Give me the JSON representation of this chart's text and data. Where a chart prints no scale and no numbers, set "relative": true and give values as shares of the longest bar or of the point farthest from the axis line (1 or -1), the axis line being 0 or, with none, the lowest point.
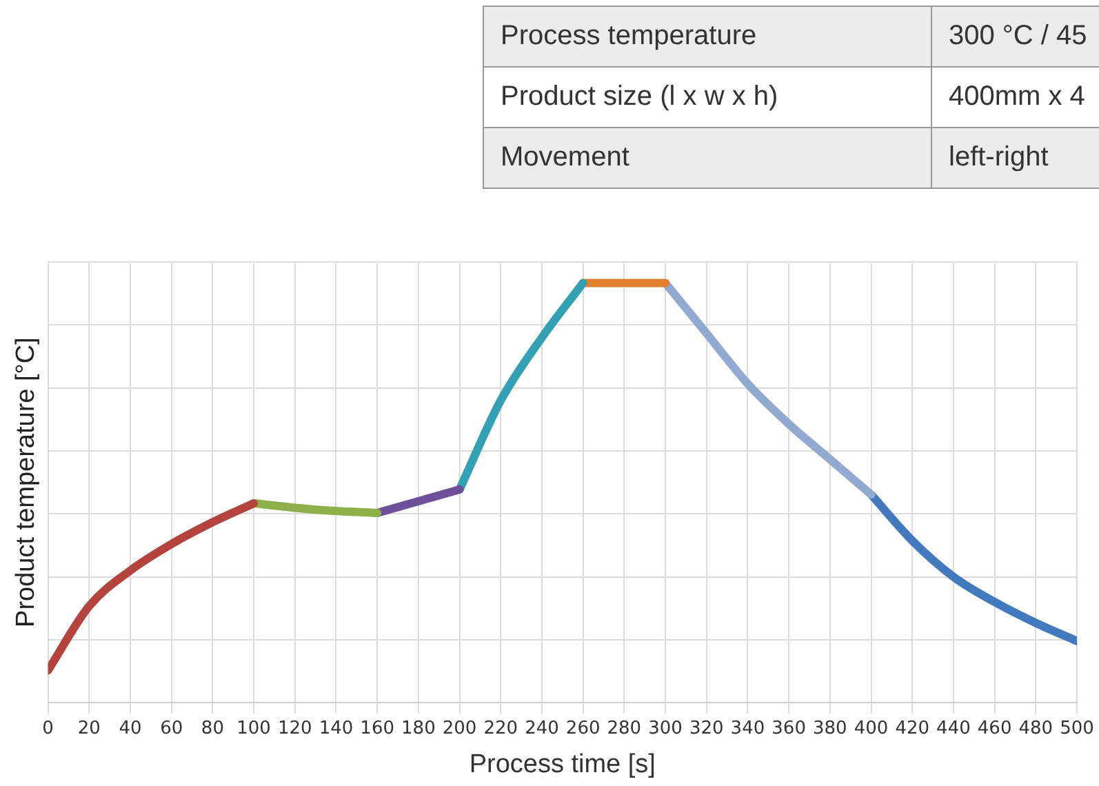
{
  "chart_data": {
    "type": "line",
    "xlabel": "Process time [s]",
    "ylabel": "Product temperature [°C]",
    "relative": true,
    "xlim": [
      0,
      500
    ],
    "xticks": [
      0,
      20,
      40,
      60,
      80,
      100,
      120,
      140,
      160,
      180,
      200,
      220,
      240,
      260,
      280,
      300,
      320,
      340,
      360,
      380,
      400,
      420,
      440,
      460,
      480,
      500
    ],
    "grid": true,
    "legend": false,
    "marker": "none",
    "line_style": "solid",
    "annotations": [
      "Process temperature",
      "300 °C / 45",
      "Product size (l x w x h)",
      "400mm x 4",
      "Movement",
      "left-right"
    ],
    "series": [
      {
        "color": "#b5433d",
        "x": [
          0,
          20,
          40,
          60,
          80,
          100
        ],
        "values": [
          0.077,
          0.23,
          0.315,
          0.378,
          0.43,
          0.475
        ]
      },
      {
        "color": "#8db04a",
        "x": [
          100,
          130,
          160
        ],
        "values": [
          0.475,
          0.46,
          0.452
        ]
      },
      {
        "color": "#6e4f9a",
        "x": [
          160,
          200
        ],
        "values": [
          0.452,
          0.508
        ]
      },
      {
        "color": "#34a0b4",
        "x": [
          200,
          220,
          240,
          260
        ],
        "values": [
          0.508,
          0.72,
          0.87,
          1
        ]
      },
      {
        "color": "#e07f2e",
        "x": [
          260,
          300
        ],
        "values": [
          1,
          1
        ]
      },
      {
        "color": "#92a9d1",
        "x": [
          300,
          320,
          340,
          360,
          380,
          400
        ],
        "values": [
          1,
          0.88,
          0.76,
          0.664,
          0.58,
          0.496
        ]
      },
      {
        "color": "#4379bd",
        "x": [
          400,
          420,
          440,
          460,
          480,
          500
        ],
        "values": [
          0.496,
          0.386,
          0.3,
          0.24,
          0.19,
          0.147
        ]
      }
    ]
  }
}
